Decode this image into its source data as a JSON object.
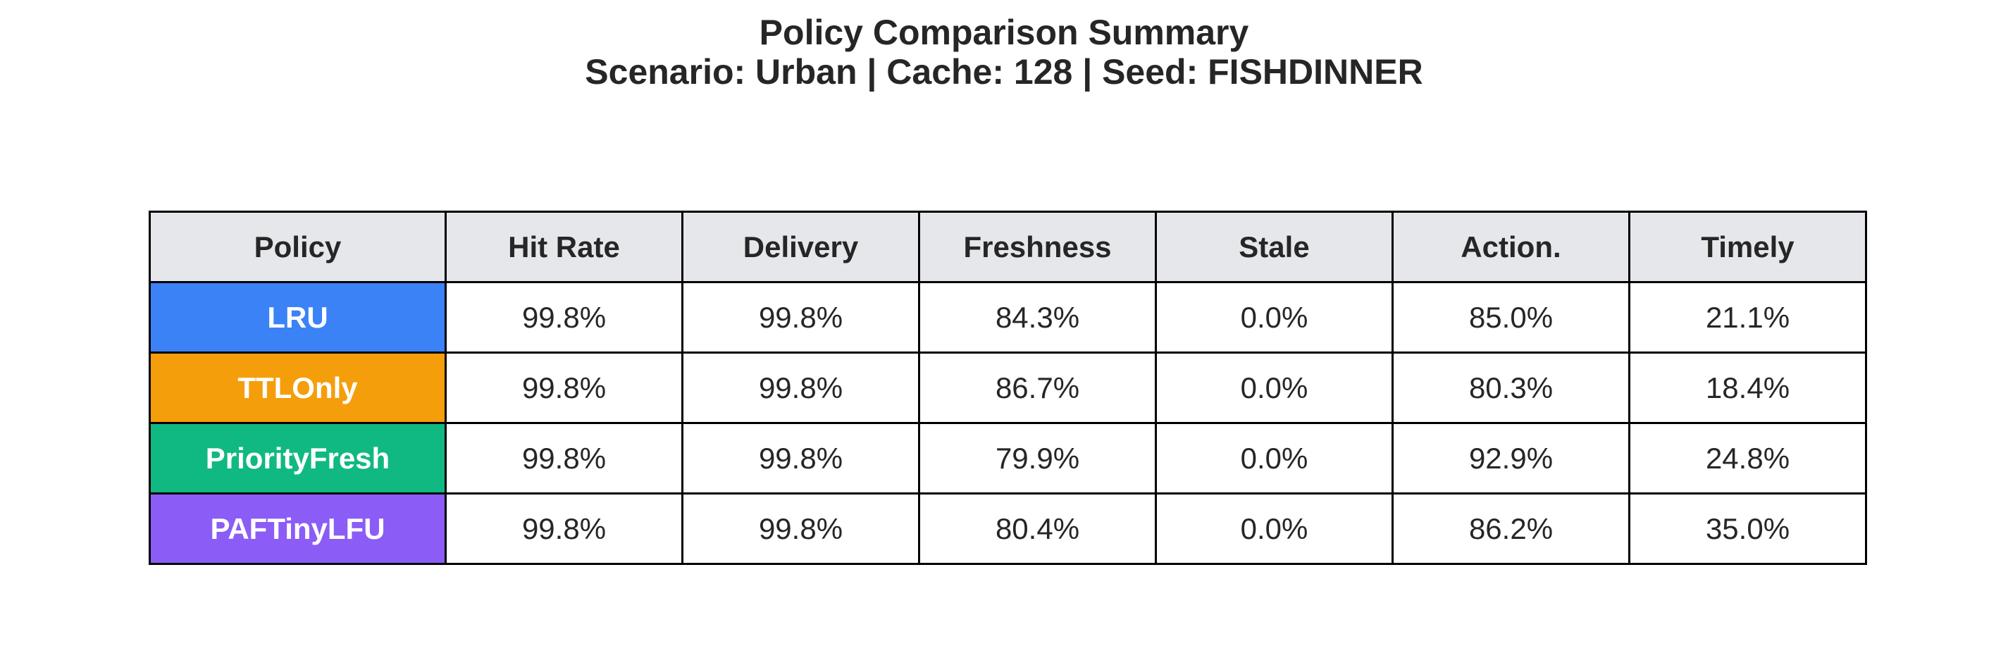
{
  "chart_data": {
    "type": "table",
    "title": "Policy Comparison Summary",
    "subtitle": "Scenario: Urban | Cache: 128 | Seed: FISHDINNER",
    "columns": [
      "Policy",
      "Hit Rate",
      "Delivery",
      "Freshness",
      "Stale",
      "Action.",
      "Timely"
    ],
    "rows": [
      {
        "policy": "LRU",
        "color": "#3b82f6",
        "values": [
          "99.8%",
          "99.8%",
          "84.3%",
          "0.0%",
          "85.0%",
          "21.1%"
        ]
      },
      {
        "policy": "TTLOnly",
        "color": "#f59e0b",
        "values": [
          "99.8%",
          "99.8%",
          "86.7%",
          "0.0%",
          "80.3%",
          "18.4%"
        ]
      },
      {
        "policy": "PriorityFresh",
        "color": "#10b981",
        "values": [
          "99.8%",
          "99.8%",
          "79.9%",
          "0.0%",
          "92.9%",
          "24.8%"
        ]
      },
      {
        "policy": "PAFTinyLFU",
        "color": "#8b5cf6",
        "values": [
          "99.8%",
          "99.8%",
          "80.4%",
          "0.0%",
          "86.2%",
          "35.0%"
        ]
      }
    ],
    "header_color": "#e5e7eb",
    "border_color": "#000000"
  }
}
